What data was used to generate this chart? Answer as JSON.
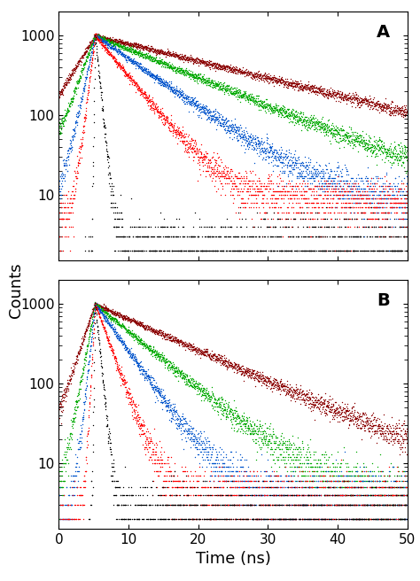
{
  "title": "",
  "xlabel": "Time (ns)",
  "ylabel": "Counts",
  "xlim": [
    0,
    50
  ],
  "ylim_log": [
    1.5,
    2000
  ],
  "panel_A_label": "A",
  "panel_B_label": "B",
  "colors": {
    "black": "#000000",
    "red": "#ff0000",
    "blue": "#0055cc",
    "green": "#00aa00",
    "darkred": "#8b0000"
  },
  "peak_time": 5.2,
  "peak_value": 1000,
  "background": "#ffffff",
  "tick_label_fontsize": 11,
  "axis_label_fontsize": 13,
  "panel_label_fontsize": 14,
  "marker_size": 2.0,
  "noise_seed": 42,
  "tau_A": {
    "black": 0.5,
    "red": 4.0,
    "blue": 7.0,
    "green": 12.0,
    "darkred": 20.0
  },
  "bg_A": {
    "black": 2.0,
    "red": 8.0,
    "blue": 7.0,
    "green": 5.0,
    "darkred": 3.0
  },
  "tau_B": {
    "black": 0.5,
    "red": 1.8,
    "blue": 3.5,
    "green": 6.0,
    "darkred": 11.0
  },
  "bg_B": {
    "black": 2.0,
    "red": 3.5,
    "blue": 3.5,
    "green": 3.5,
    "darkred": 3.5
  }
}
